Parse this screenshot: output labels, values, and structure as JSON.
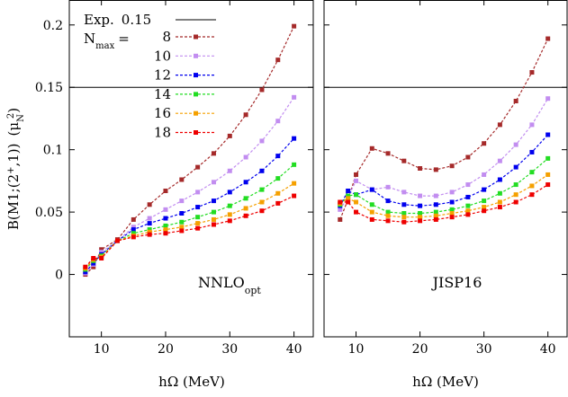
{
  "chart_data": [
    {
      "type": "line",
      "panel_label": "NNLO",
      "panel_label_sub": "opt",
      "x_ticks": [
        10,
        20,
        30,
        40
      ],
      "y_ticks": [
        "0",
        "0.05",
        "0.1",
        "0.15",
        "0.2"
      ],
      "xlim": [
        5,
        43
      ],
      "ylim": [
        -0.05,
        0.22
      ],
      "xlabel": "hΩ (MeV)",
      "ylabel_main": "B(M1;(2",
      "ylabel_sup": "+",
      "ylabel_rest": ",1))",
      "ylabel_unit_open": "(μ",
      "ylabel_unit_sub": "N",
      "ylabel_unit_sup": "2",
      "ylabel_unit_close": ")",
      "experiment": 0.15,
      "series": [
        {
          "nmax": "8",
          "color": "#a52a2a",
          "x": [
            7.5,
            8.75,
            10,
            12.5,
            15,
            17.5,
            20,
            22.5,
            25,
            27.5,
            30,
            32.5,
            35,
            37.5,
            40
          ],
          "values": [
            0.0,
            0.006,
            0.02,
            0.028,
            0.044,
            0.056,
            0.067,
            0.076,
            0.086,
            0.097,
            0.111,
            0.128,
            0.148,
            0.172,
            0.199
          ]
        },
        {
          "nmax": "10",
          "color": "#c28df0",
          "x": [
            7.5,
            8.75,
            10,
            12.5,
            15,
            17.5,
            20,
            22.5,
            25,
            27.5,
            30,
            32.5,
            35,
            37.5,
            40
          ],
          "values": [
            0.001,
            0.008,
            0.018,
            0.027,
            0.038,
            0.045,
            0.052,
            0.059,
            0.066,
            0.074,
            0.083,
            0.094,
            0.107,
            0.123,
            0.142
          ]
        },
        {
          "nmax": "12",
          "color": "#0000ee",
          "x": [
            7.5,
            8.75,
            10,
            12.5,
            15,
            17.5,
            20,
            22.5,
            25,
            27.5,
            30,
            32.5,
            35,
            37.5,
            40
          ],
          "values": [
            0.002,
            0.009,
            0.016,
            0.027,
            0.036,
            0.041,
            0.045,
            0.049,
            0.054,
            0.059,
            0.066,
            0.074,
            0.083,
            0.095,
            0.109
          ]
        },
        {
          "nmax": "14",
          "color": "#22dd22",
          "x": [
            7.5,
            8.75,
            10,
            12.5,
            15,
            17.5,
            20,
            22.5,
            25,
            27.5,
            30,
            32.5,
            35,
            37.5,
            40
          ],
          "values": [
            0.004,
            0.011,
            0.015,
            0.027,
            0.033,
            0.036,
            0.039,
            0.042,
            0.046,
            0.05,
            0.055,
            0.061,
            0.068,
            0.077,
            0.088
          ]
        },
        {
          "nmax": "16",
          "color": "#f5a000",
          "x": [
            7.5,
            8.75,
            10,
            12.5,
            15,
            17.5,
            20,
            22.5,
            25,
            27.5,
            30,
            32.5,
            35,
            37.5,
            40
          ],
          "values": [
            0.005,
            0.012,
            0.014,
            0.027,
            0.031,
            0.034,
            0.036,
            0.038,
            0.041,
            0.044,
            0.048,
            0.053,
            0.058,
            0.065,
            0.073
          ]
        },
        {
          "nmax": "18",
          "color": "#ee0000",
          "x": [
            7.5,
            8.75,
            10,
            12.5,
            15,
            17.5,
            20,
            22.5,
            25,
            27.5,
            30,
            32.5,
            35,
            37.5,
            40
          ],
          "values": [
            0.006,
            0.013,
            0.013,
            0.027,
            0.03,
            0.032,
            0.033,
            0.035,
            0.037,
            0.04,
            0.043,
            0.047,
            0.051,
            0.057,
            0.063
          ]
        }
      ]
    },
    {
      "type": "line",
      "panel_label": "JISP16",
      "x_ticks": [
        10,
        20,
        30,
        40
      ],
      "xlim": [
        5,
        43
      ],
      "ylim": [
        -0.05,
        0.22
      ],
      "xlabel": "hΩ (MeV)",
      "experiment": 0.15,
      "series": [
        {
          "nmax": "8",
          "color": "#a52a2a",
          "x": [
            7.5,
            8.75,
            10,
            12.5,
            15,
            17.5,
            20,
            22.5,
            25,
            27.5,
            30,
            32.5,
            35,
            37.5,
            40
          ],
          "values": [
            0.044,
            0.06,
            0.08,
            0.101,
            0.097,
            0.091,
            0.085,
            0.084,
            0.087,
            0.094,
            0.105,
            0.12,
            0.139,
            0.162,
            0.189
          ]
        },
        {
          "nmax": "10",
          "color": "#c28df0",
          "x": [
            7.5,
            8.75,
            10,
            12.5,
            15,
            17.5,
            20,
            22.5,
            25,
            27.5,
            30,
            32.5,
            35,
            37.5,
            40
          ],
          "values": [
            0.052,
            0.062,
            0.075,
            0.068,
            0.07,
            0.066,
            0.063,
            0.063,
            0.066,
            0.072,
            0.08,
            0.091,
            0.104,
            0.12,
            0.141
          ]
        },
        {
          "nmax": "12",
          "color": "#0000ee",
          "x": [
            7.5,
            8.75,
            10,
            12.5,
            15,
            17.5,
            20,
            22.5,
            25,
            27.5,
            30,
            32.5,
            35,
            37.5,
            40
          ],
          "values": [
            0.055,
            0.067,
            0.064,
            0.068,
            0.059,
            0.056,
            0.055,
            0.056,
            0.058,
            0.062,
            0.068,
            0.076,
            0.086,
            0.098,
            0.112
          ]
        },
        {
          "nmax": "14",
          "color": "#22dd22",
          "x": [
            7.5,
            8.75,
            10,
            12.5,
            15,
            17.5,
            20,
            22.5,
            25,
            27.5,
            30,
            32.5,
            35,
            37.5,
            40
          ],
          "values": [
            0.056,
            0.063,
            0.064,
            0.056,
            0.05,
            0.049,
            0.049,
            0.05,
            0.052,
            0.055,
            0.059,
            0.065,
            0.072,
            0.082,
            0.093
          ]
        },
        {
          "nmax": "16",
          "color": "#f5a000",
          "x": [
            7.5,
            8.75,
            10,
            12.5,
            15,
            17.5,
            20,
            22.5,
            25,
            27.5,
            30,
            32.5,
            35,
            37.5,
            40
          ],
          "values": [
            0.057,
            0.061,
            0.058,
            0.05,
            0.047,
            0.046,
            0.046,
            0.047,
            0.049,
            0.051,
            0.054,
            0.058,
            0.064,
            0.071,
            0.08
          ]
        },
        {
          "nmax": "18",
          "color": "#ee0000",
          "x": [
            7.5,
            8.75,
            10,
            12.5,
            15,
            17.5,
            20,
            22.5,
            25,
            27.5,
            30,
            32.5,
            35,
            37.5,
            40
          ],
          "values": [
            0.058,
            0.058,
            0.05,
            0.044,
            0.043,
            0.042,
            0.043,
            0.044,
            0.046,
            0.048,
            0.051,
            0.054,
            0.058,
            0.064,
            0.072
          ]
        }
      ]
    }
  ],
  "legend": {
    "exp_label": "Exp.",
    "exp_value": "0.15",
    "nmax_prefix": "N",
    "nmax_sub": "max",
    "nmax_eq": "="
  }
}
